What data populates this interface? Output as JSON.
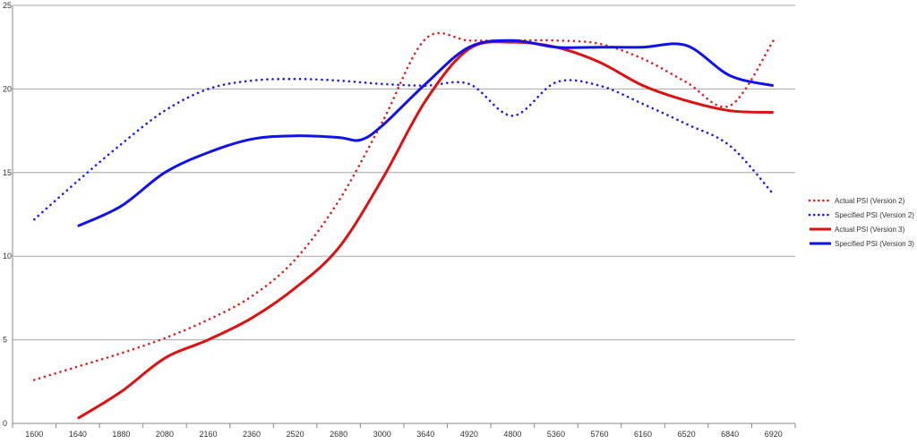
{
  "chart_data": {
    "type": "line",
    "categories": [
      "1600",
      "1640",
      "1880",
      "2080",
      "2160",
      "2360",
      "2520",
      "2680",
      "3000",
      "3640",
      "4920",
      "4800",
      "5360",
      "5760",
      "6160",
      "6520",
      "6840",
      "6920"
    ],
    "ylim": [
      0,
      25
    ],
    "yticks": [
      "0",
      "5",
      "10",
      "15",
      "20",
      "25"
    ],
    "grid": true,
    "legend_position": "right",
    "series": [
      {
        "name": "Actual PSI (Version 2)",
        "color": "#e02020",
        "style": "dotted",
        "points": [
          [
            0,
            2.6
          ],
          [
            1,
            3.4
          ],
          [
            2,
            4.2
          ],
          [
            3,
            5.1
          ],
          [
            4,
            6.2
          ],
          [
            5,
            7.6
          ],
          [
            6,
            9.8
          ],
          [
            7,
            13.3
          ],
          [
            8,
            18.0
          ],
          [
            9,
            23.0
          ],
          [
            10,
            22.9
          ],
          [
            11,
            22.9
          ],
          [
            12,
            22.9
          ],
          [
            13,
            22.7
          ],
          [
            14,
            21.8
          ],
          [
            15,
            20.4
          ],
          [
            16,
            19.0
          ],
          [
            17,
            22.9
          ]
        ]
      },
      {
        "name": "Specified PSI (Version 2)",
        "color": "#1a1aee",
        "style": "dotted",
        "points": [
          [
            0,
            12.2
          ],
          [
            1,
            14.5
          ],
          [
            2,
            16.7
          ],
          [
            3,
            18.7
          ],
          [
            4,
            20.0
          ],
          [
            5,
            20.5
          ],
          [
            6,
            20.6
          ],
          [
            7,
            20.5
          ],
          [
            8,
            20.3
          ],
          [
            9,
            20.2
          ],
          [
            10,
            20.3
          ],
          [
            11,
            18.4
          ],
          [
            12,
            20.4
          ],
          [
            13,
            20.2
          ],
          [
            14,
            19.1
          ],
          [
            15,
            17.9
          ],
          [
            16,
            16.6
          ],
          [
            17,
            13.7
          ]
        ]
      },
      {
        "name": "Actual PSI (Version 3)",
        "color": "#dd1111",
        "style": "solid",
        "points": [
          [
            1,
            0.3
          ],
          [
            2,
            1.9
          ],
          [
            3,
            3.9
          ],
          [
            4,
            5.0
          ],
          [
            5,
            6.3
          ],
          [
            6,
            8.1
          ],
          [
            7,
            10.5
          ],
          [
            8,
            14.6
          ],
          [
            9,
            19.3
          ],
          [
            10,
            22.4
          ],
          [
            11,
            22.8
          ],
          [
            12,
            22.5
          ],
          [
            13,
            21.6
          ],
          [
            14,
            20.2
          ],
          [
            15,
            19.3
          ],
          [
            16,
            18.7
          ],
          [
            17,
            18.6
          ]
        ]
      },
      {
        "name": "Specified PSI (Version 3)",
        "color": "#1111ee",
        "style": "solid",
        "points": [
          [
            1,
            11.8
          ],
          [
            2,
            13.0
          ],
          [
            3,
            15.0
          ],
          [
            4,
            16.2
          ],
          [
            5,
            17.0
          ],
          [
            6,
            17.2
          ],
          [
            7,
            17.1
          ],
          [
            7.5,
            16.95
          ],
          [
            8,
            17.8
          ],
          [
            9,
            20.3
          ],
          [
            10,
            22.5
          ],
          [
            11,
            22.9
          ],
          [
            12,
            22.5
          ],
          [
            13,
            22.5
          ],
          [
            14,
            22.5
          ],
          [
            15,
            22.6
          ],
          [
            16,
            20.8
          ],
          [
            17,
            20.2
          ]
        ]
      }
    ]
  }
}
